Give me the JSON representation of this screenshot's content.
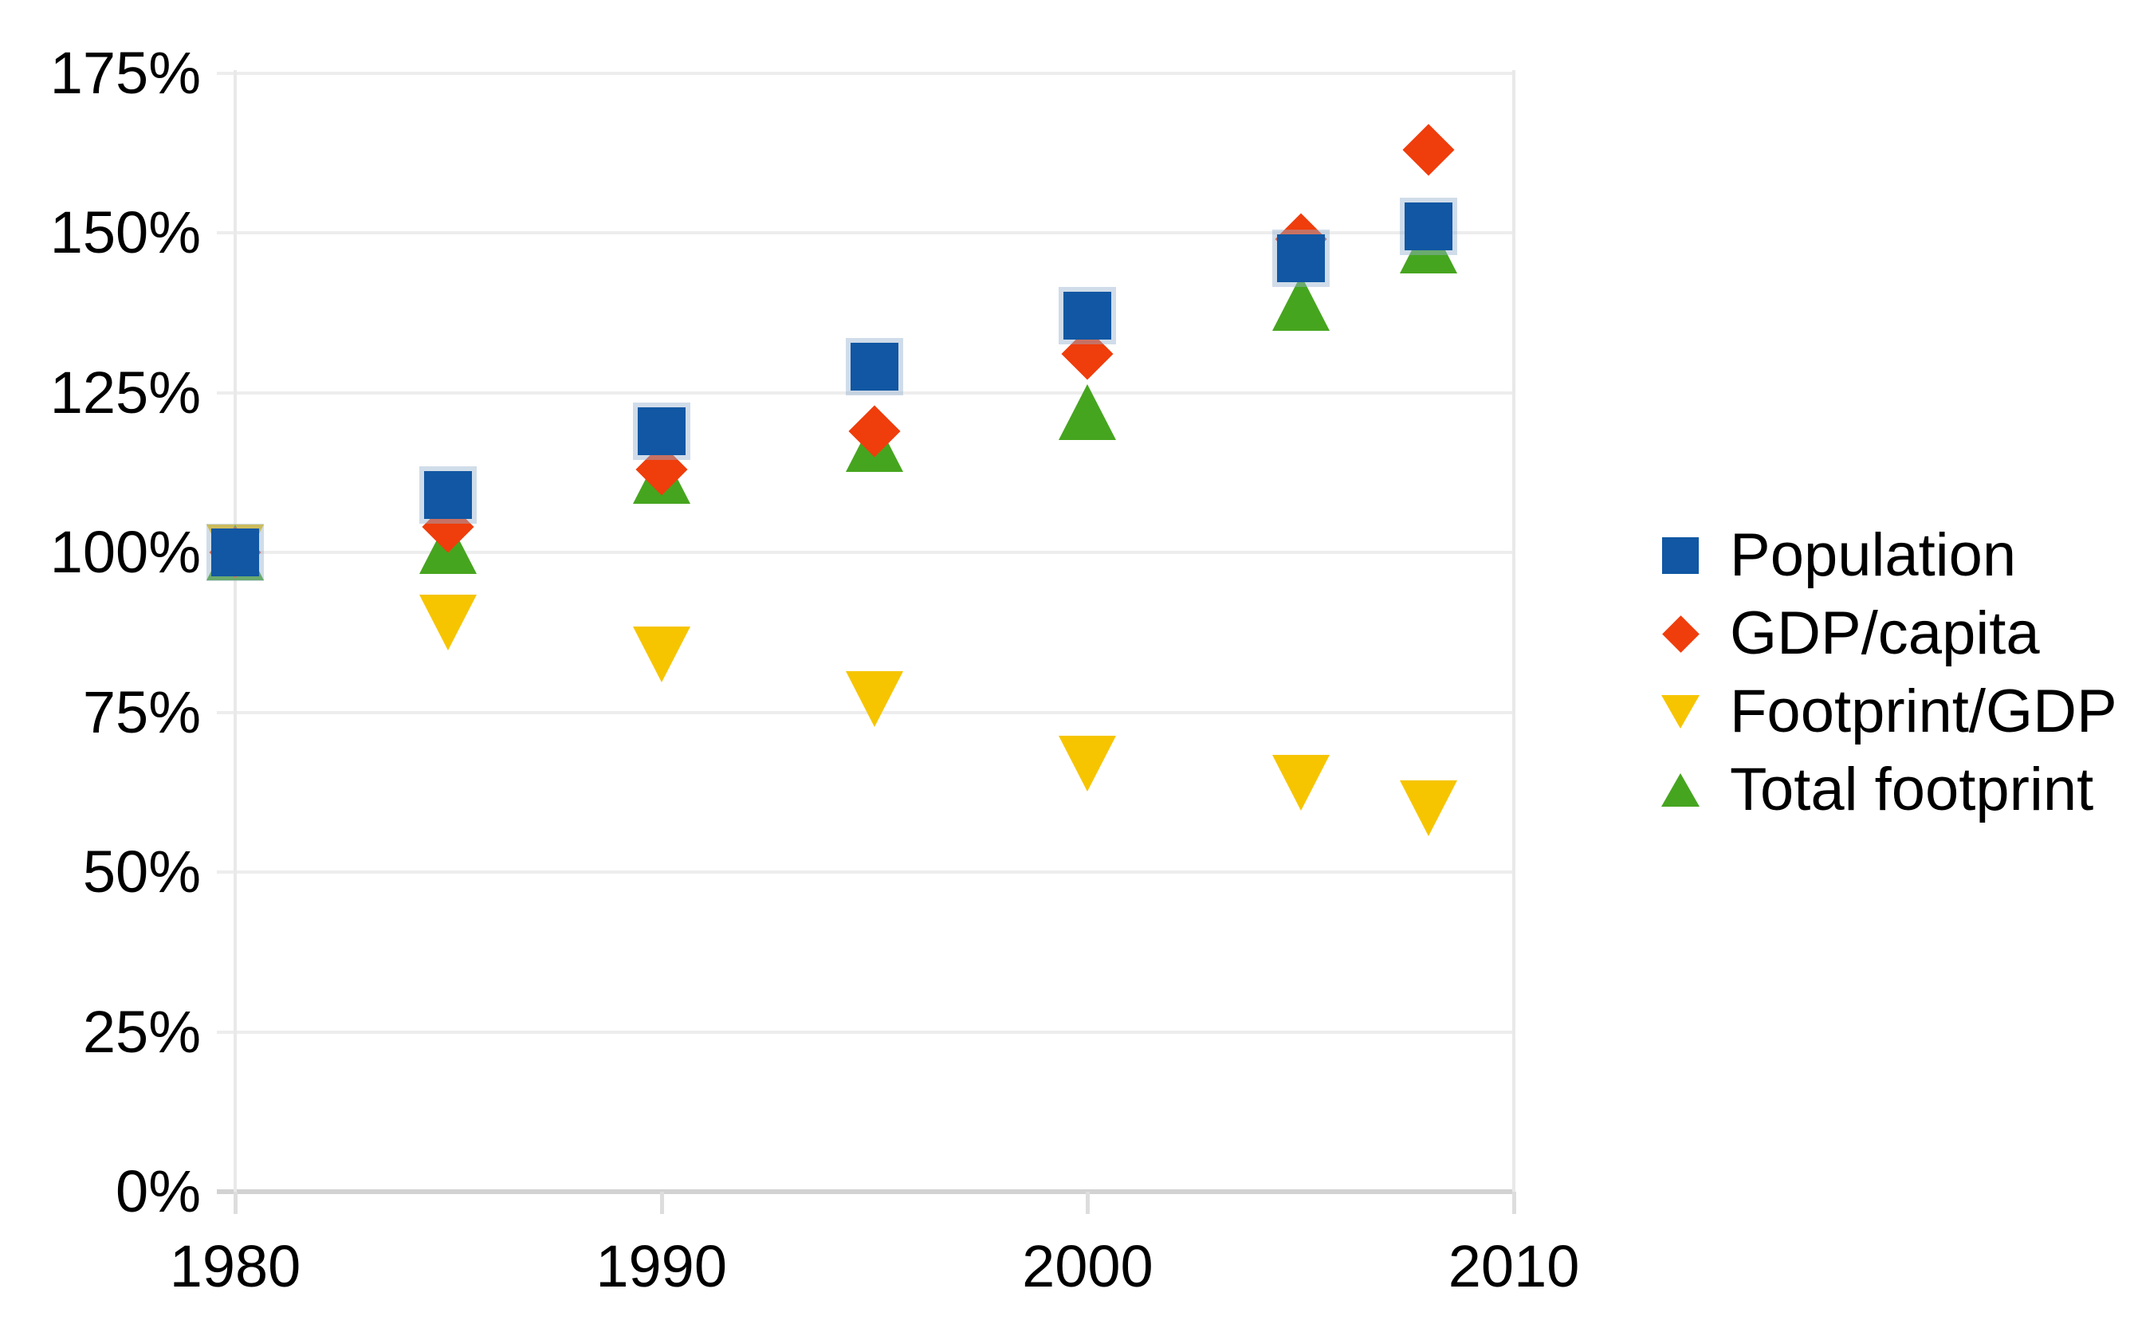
{
  "chart_data": {
    "type": "scatter",
    "title": "",
    "x": [
      1980,
      1985,
      1990,
      1995,
      2000,
      2005,
      2008
    ],
    "series": [
      {
        "name": "Population",
        "marker": "square",
        "color": "#1157A3",
        "values": [
          100,
          109,
          119,
          129,
          137,
          146,
          151
        ]
      },
      {
        "name": "GDP/capita",
        "marker": "diamond",
        "color": "#EF3D0C",
        "values": [
          100,
          104,
          113,
          119,
          131,
          149,
          163
        ]
      },
      {
        "name": "Footprint/GDP",
        "marker": "triangle-down",
        "color": "#F6C500",
        "values": [
          100,
          89,
          84,
          77,
          67,
          64,
          60
        ]
      },
      {
        "name": "Total footprint",
        "marker": "triangle-up",
        "color": "#46A51F",
        "values": [
          100,
          101,
          112,
          117,
          122,
          139,
          148
        ]
      }
    ],
    "y_axis": {
      "unit": "%",
      "range": [
        0,
        175
      ],
      "ticks": [
        {
          "value": 175,
          "label": "175%"
        },
        {
          "value": 150,
          "label": "150%"
        },
        {
          "value": 125,
          "label": "125%"
        },
        {
          "value": 100,
          "label": "100%"
        },
        {
          "value": 75,
          "label": "75%"
        },
        {
          "value": 50,
          "label": "50%"
        },
        {
          "value": 25,
          "label": "25%"
        },
        {
          "value": 0,
          "label": "0%"
        }
      ]
    },
    "x_axis": {
      "range": [
        1979.6,
        2010
      ],
      "ticks": [
        {
          "value": 1980,
          "label": "1980"
        },
        {
          "value": 1990,
          "label": "1990"
        },
        {
          "value": 2000,
          "label": "2000"
        },
        {
          "value": 2010,
          "label": "2010"
        }
      ]
    },
    "legend": {
      "position": "right",
      "entries": [
        "Population",
        "GDP/capita",
        "Footprint/GDP",
        "Total footprint"
      ]
    },
    "grid": {
      "horizontal": true,
      "vertical_boundary_years": [
        1980,
        2010
      ]
    },
    "draw_order_bottom_to_top": [
      "Footprint/GDP",
      "Total footprint",
      "GDP/capita",
      "Population"
    ]
  },
  "style_colors": {
    "background": "#FFFFFF",
    "grid": "#EDEDED",
    "axis": "#D2D2D2",
    "vertical_boundary": "#E9E9E9",
    "tick": "#DDDDDD",
    "text": "#000000",
    "square_halo": "rgba(150,178,207,0.45)"
  }
}
